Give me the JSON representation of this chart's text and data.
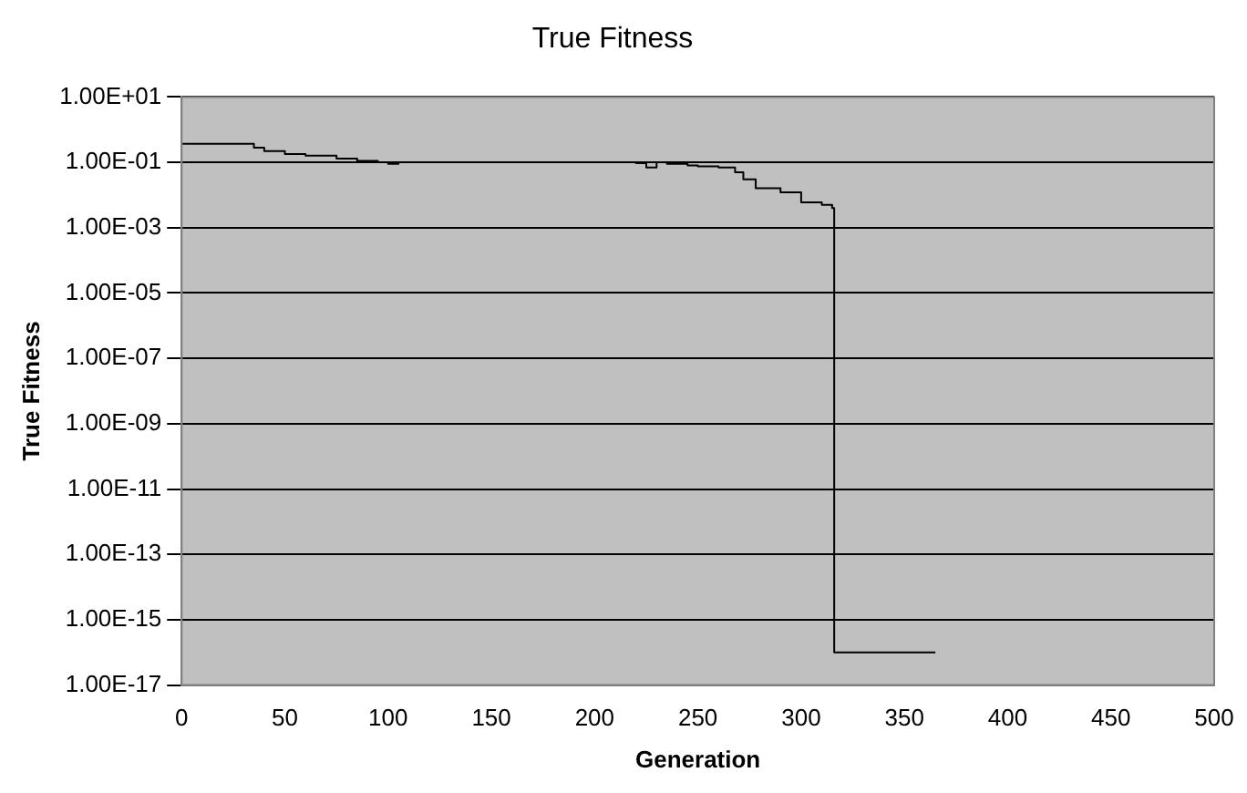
{
  "chart_data": {
    "type": "step",
    "title": "True Fitness",
    "xlabel": "Generation",
    "ylabel": "True Fitness",
    "log": "y",
    "grid": "y",
    "legend": false,
    "marker": "none",
    "line_style": "solid",
    "xlim": [
      0,
      500
    ],
    "xticks": [
      0,
      50,
      100,
      150,
      200,
      250,
      300,
      350,
      400,
      450,
      500
    ],
    "ylim": [
      1e-17,
      10
    ],
    "yticks": [
      {
        "value": 1e-17,
        "label": "1.00E-17"
      },
      {
        "value": 1e-15,
        "label": "1.00E-15"
      },
      {
        "value": 1e-13,
        "label": "1.00E-13"
      },
      {
        "value": 1e-11,
        "label": "1.00E-11"
      },
      {
        "value": 1e-09,
        "label": "1.00E-09"
      },
      {
        "value": 1e-07,
        "label": "1.00E-07"
      },
      {
        "value": 1e-05,
        "label": "1.00E-05"
      },
      {
        "value": 0.001,
        "label": "1.00E-03"
      },
      {
        "value": 0.1,
        "label": "1.00E-01"
      },
      {
        "value": 10,
        "label": "1.00E+01"
      }
    ],
    "series": [
      {
        "color": "#000000",
        "x": [
          0,
          35,
          40,
          50,
          60,
          75,
          85,
          95,
          100,
          105,
          110,
          120,
          150,
          180,
          200,
          220,
          225,
          230,
          235,
          245,
          250,
          260,
          268,
          272,
          278,
          290,
          300,
          310,
          315,
          316,
          365
        ],
        "values": [
          0.37,
          0.28,
          0.22,
          0.18,
          0.16,
          0.13,
          0.11,
          0.1,
          0.09,
          0.1,
          0.1,
          0.1,
          0.1,
          0.1,
          0.1,
          0.095,
          0.07,
          0.1,
          0.09,
          0.08,
          0.075,
          0.07,
          0.05,
          0.03,
          0.016,
          0.012,
          0.006,
          0.005,
          0.004,
          1e-16,
          1e-16
        ]
      }
    ]
  }
}
